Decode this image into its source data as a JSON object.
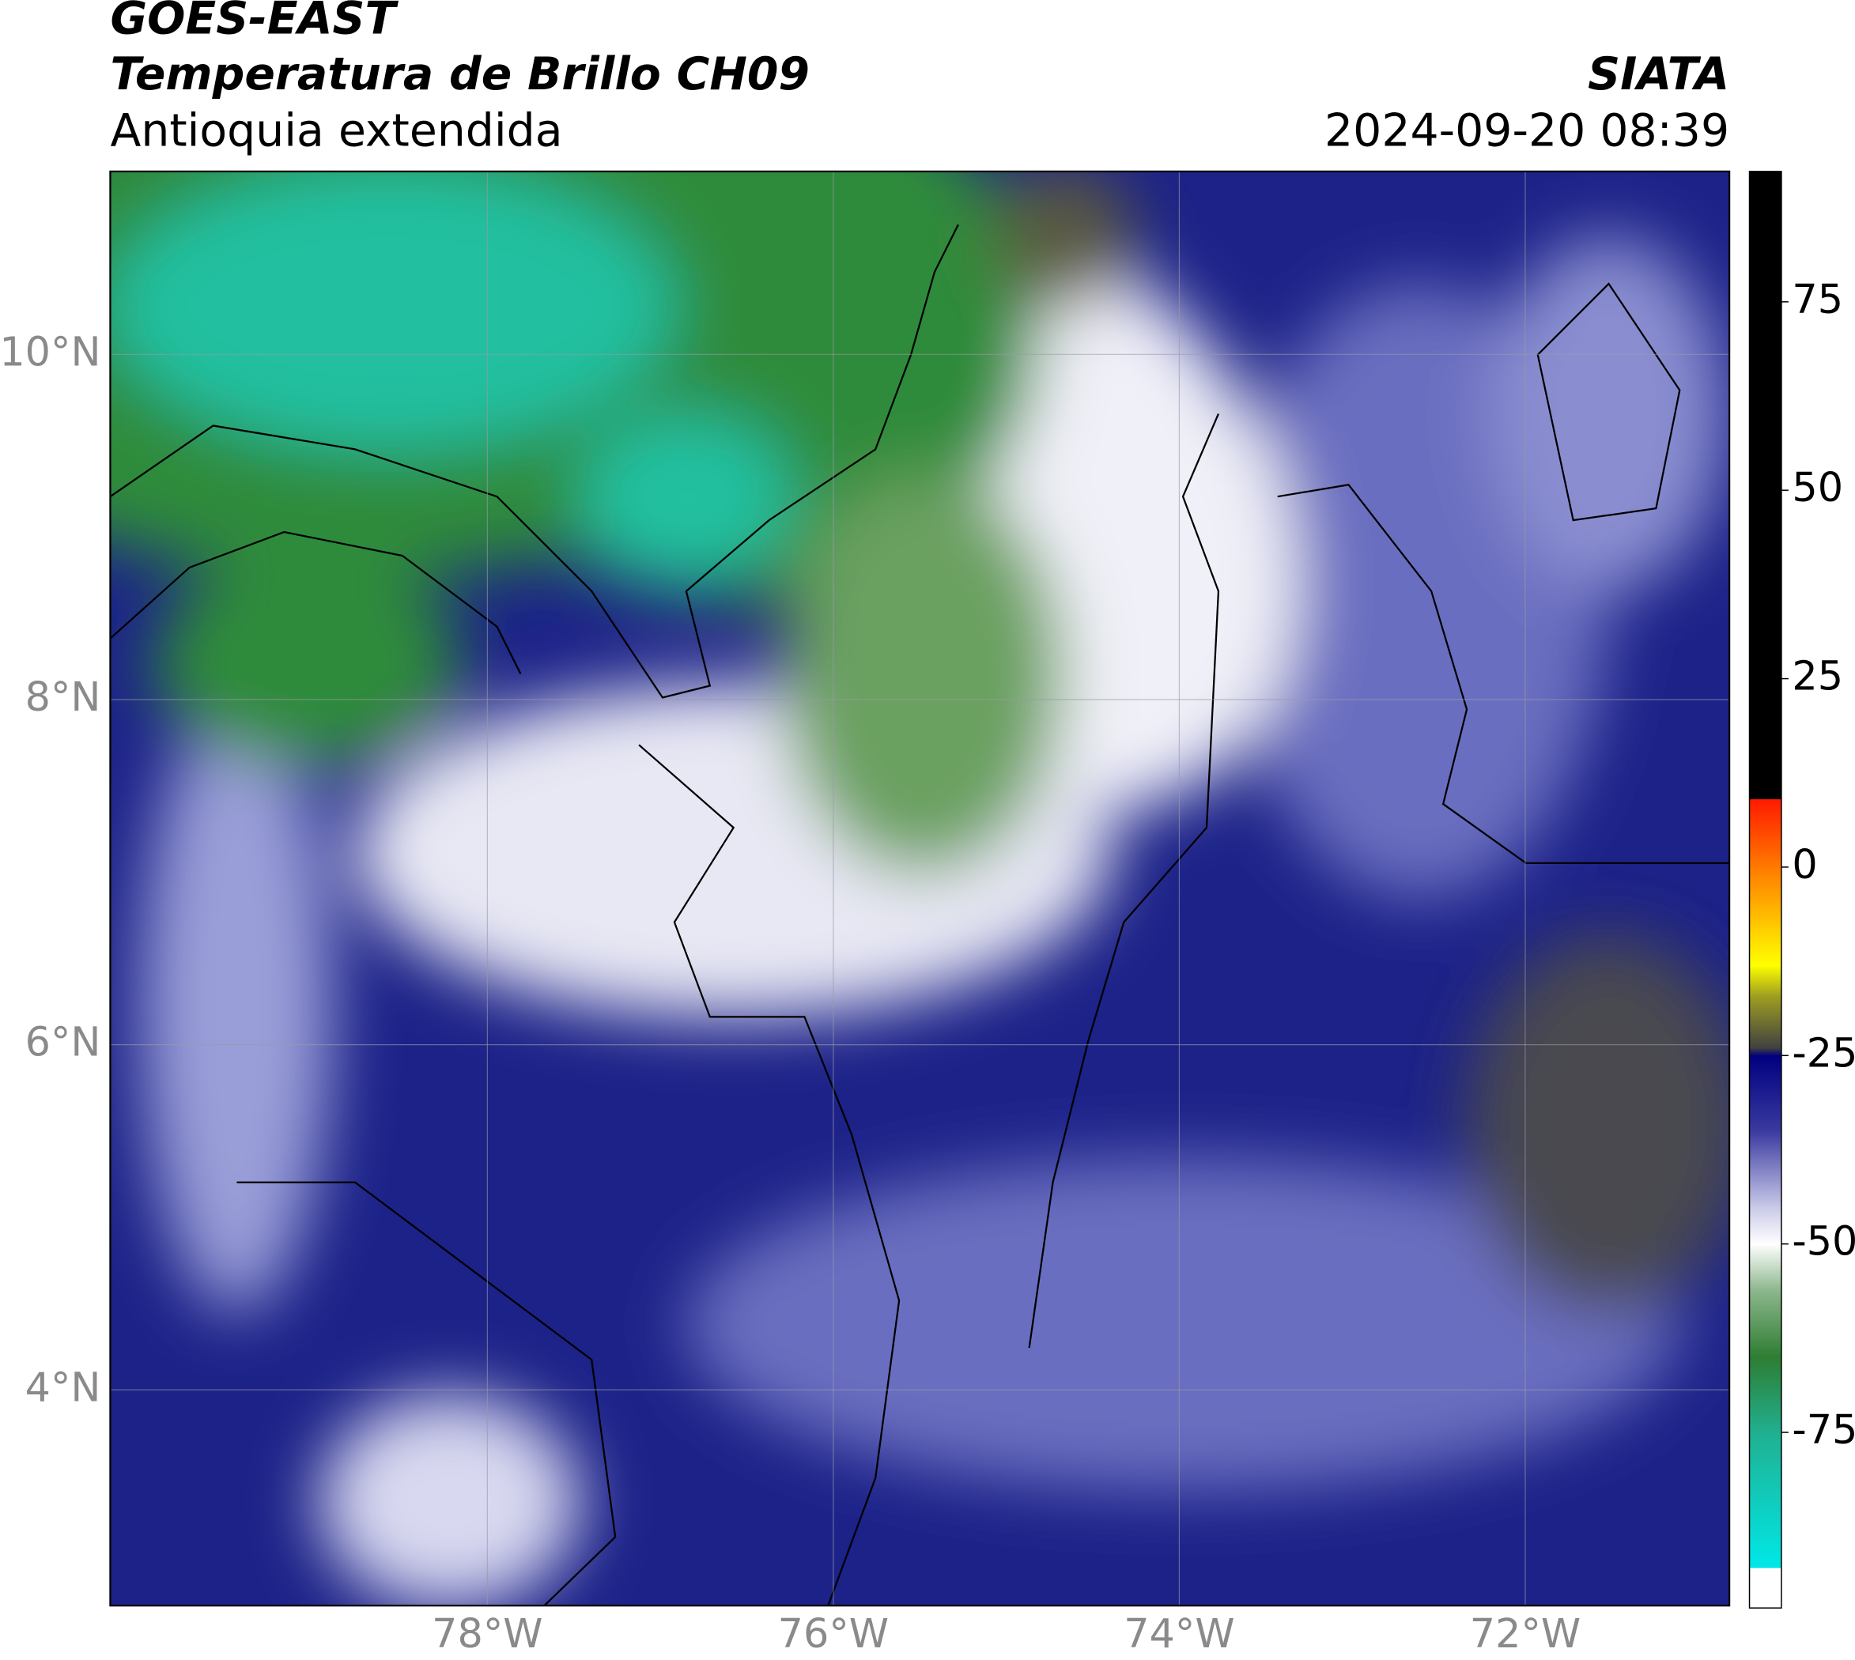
{
  "chart_data": {
    "type": "map",
    "title": "GOES-EAST",
    "subtitle": "Temperatura de Brillo CH09",
    "region": "Antioquia extendida",
    "source": "SIATA",
    "timestamp": "2024-09-20 08:39",
    "xlim": [
      -80.18,
      -70.82
    ],
    "ylim": [
      2.75,
      11.06
    ],
    "xticks": [
      {
        "value": -78,
        "label": "78°W"
      },
      {
        "value": -76,
        "label": "76°W"
      },
      {
        "value": -74,
        "label": "74°W"
      },
      {
        "value": -72,
        "label": "72°W"
      }
    ],
    "yticks": [
      {
        "value": 4,
        "label": "4°N"
      },
      {
        "value": 6,
        "label": "6°N"
      },
      {
        "value": 8,
        "label": "8°N"
      },
      {
        "value": 10,
        "label": "10°N"
      }
    ],
    "grid": true,
    "colorbar": {
      "lim": [
        -98.3,
        92.3
      ],
      "ticks": [
        -75,
        -50,
        -25,
        0,
        25,
        50,
        75
      ],
      "colorscale": [
        {
          "value": 92.3,
          "color": "#000000"
        },
        {
          "value": 9,
          "color": "#000000"
        },
        {
          "value": 9,
          "color": "#ff1a00"
        },
        {
          "value": 0,
          "color": "#ff7a00"
        },
        {
          "value": -8,
          "color": "#ffcc00"
        },
        {
          "value": -13,
          "color": "#ffff00"
        },
        {
          "value": -17,
          "color": "#a0a020"
        },
        {
          "value": -24,
          "color": "#404040"
        },
        {
          "value": -25,
          "color": "#000080"
        },
        {
          "value": -35,
          "color": "#3a3aa0"
        },
        {
          "value": -45,
          "color": "#c8c8e8"
        },
        {
          "value": -50,
          "color": "#ffffff"
        },
        {
          "value": -56,
          "color": "#8fb88f"
        },
        {
          "value": -65,
          "color": "#2e7d32"
        },
        {
          "value": -75,
          "color": "#20b090"
        },
        {
          "value": -93,
          "color": "#00e8e8"
        },
        {
          "value": -93,
          "color": "#ffffff"
        },
        {
          "value": -98.3,
          "color": "#ffffff"
        }
      ]
    }
  }
}
